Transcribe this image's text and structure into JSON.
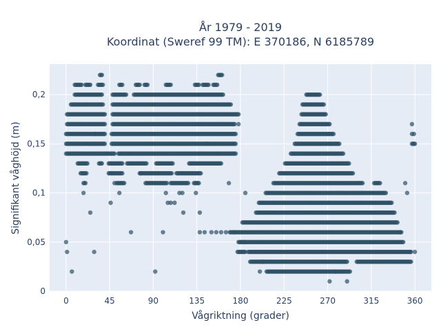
{
  "chart_data": {
    "type": "scatter",
    "title_line1": "År 1979 - 2019",
    "title_line2": "Koordinat (Sweref 99 TM): E 370186, N 6185789",
    "xlabel": "Vågriktning (grader)",
    "ylabel": "Signifikant våghöjd (m)",
    "xlim": [
      -17,
      377
    ],
    "ylim": [
      0,
      0.231
    ],
    "x_ticks": [
      0,
      45,
      90,
      135,
      180,
      225,
      270,
      315,
      360
    ],
    "x_tick_labels": [
      "0",
      "45",
      "90",
      "135",
      "180",
      "225",
      "270",
      "315",
      "360"
    ],
    "y_ticks": [
      0,
      0.05,
      0.1,
      0.15,
      0.2
    ],
    "y_tick_labels": [
      "0",
      "0,05",
      "0,1",
      "0,15",
      "0,2"
    ],
    "grid": true,
    "colors": {
      "marker": "#2f5166",
      "plot_background": "#e5ecf6",
      "grid": "#ffffff",
      "text": "#2a3f5f"
    },
    "series": [
      {
        "description_note": "dense bands of measured observations (wave height rounded to 0.01 m)",
        "bands": [
          {
            "y": 0.22,
            "x_ranges": [
              [
                35,
                37
              ],
              [
                157,
                161
              ]
            ]
          },
          {
            "y": 0.21,
            "x_ranges": [
              [
                9,
                16
              ],
              [
                20,
                25
              ],
              [
                33,
                38
              ],
              [
                55,
                58
              ],
              [
                72,
                76
              ],
              [
                81,
                84
              ],
              [
                103,
                108
              ],
              [
                133,
                137
              ],
              [
                141,
                147
              ],
              [
                152,
                156
              ]
            ]
          },
          {
            "y": 0.2,
            "x_ranges": [
              [
                9,
                37
              ],
              [
                48,
                62
              ],
              [
                70,
                96
              ],
              [
                97,
                162
              ],
              [
                248,
                262
              ]
            ]
          },
          {
            "y": 0.19,
            "x_ranges": [
              [
                5,
                38
              ],
              [
                48,
                170
              ],
              [
                244,
                266
              ]
            ]
          },
          {
            "y": 0.18,
            "x_ranges": [
              [
                1,
                40
              ],
              [
                48,
                178
              ],
              [
                243,
                268
              ]
            ]
          },
          {
            "y": 0.17,
            "x_ranges": [
              [
                1,
                40
              ],
              [
                48,
                174
              ],
              [
                241,
                272
              ]
            ]
          },
          {
            "y": 0.16,
            "x_ranges": [
              [
                0,
                40
              ],
              [
                47,
                175
              ],
              [
                239,
                276
              ]
            ]
          },
          {
            "y": 0.15,
            "x_ranges": [
              [
                0,
                40
              ],
              [
                47,
                175
              ],
              [
                236,
                282
              ],
              [
                357,
                360
              ]
            ]
          },
          {
            "y": 0.14,
            "x_ranges": [
              [
                0,
                50
              ],
              [
                54,
                175
              ],
              [
                232,
                286
              ]
            ]
          },
          {
            "y": 0.13,
            "x_ranges": [
              [
                12,
                22
              ],
              [
                34,
                37
              ],
              [
                44,
                58
              ],
              [
                63,
                83
              ],
              [
                93,
                110
              ],
              [
                127,
                160
              ],
              [
                226,
                292
              ]
            ]
          },
          {
            "y": 0.12,
            "x_ranges": [
              [
                15,
                20
              ],
              [
                44,
                58
              ],
              [
                76,
                109
              ],
              [
                114,
                139
              ],
              [
                220,
                296
              ]
            ]
          },
          {
            "y": 0.11,
            "x_ranges": [
              [
                18,
                20
              ],
              [
                52,
                60
              ],
              [
                82,
                104
              ],
              [
                108,
                126
              ],
              [
                132,
                137
              ],
              [
                214,
                306
              ],
              [
                318,
                324
              ]
            ]
          },
          {
            "y": 0.1,
            "x_ranges": [
              [
                206,
                330
              ]
            ]
          },
          {
            "y": 0.09,
            "x_ranges": [
              [
                199,
                336
              ]
            ]
          },
          {
            "y": 0.08,
            "x_ranges": [
              [
                196,
                339
              ]
            ]
          },
          {
            "y": 0.07,
            "x_ranges": [
              [
                182,
                342
              ]
            ]
          },
          {
            "y": 0.06,
            "x_ranges": [
              [
                169,
                346
              ]
            ]
          },
          {
            "y": 0.05,
            "x_ranges": [
              [
                178,
                348
              ]
            ]
          },
          {
            "y": 0.04,
            "x_ranges": [
              [
                177,
                185
              ],
              [
                188,
                356
              ]
            ]
          },
          {
            "y": 0.03,
            "x_ranges": [
              [
                190,
                290
              ],
              [
                300,
                356
              ]
            ]
          },
          {
            "y": 0.02,
            "x_ranges": [
              [
                207,
                293
              ]
            ]
          }
        ],
        "points": [
          [
            0,
            0.05
          ],
          [
            1,
            0.04
          ],
          [
            6,
            0.02
          ],
          [
            29,
            0.04
          ],
          [
            92,
            0.02
          ],
          [
            67,
            0.06
          ],
          [
            121,
            0.08
          ],
          [
            138,
            0.08
          ],
          [
            25,
            0.08
          ],
          [
            18,
            0.1
          ],
          [
            46,
            0.09
          ],
          [
            50,
            0.11
          ],
          [
            55,
            0.1
          ],
          [
            103,
            0.1
          ],
          [
            117,
            0.1
          ],
          [
            120,
            0.1
          ],
          [
            134,
            0.1
          ],
          [
            168,
            0.11
          ],
          [
            150,
            0.06
          ],
          [
            155,
            0.06
          ],
          [
            160,
            0.06
          ],
          [
            165,
            0.06
          ],
          [
            174,
            0.06
          ],
          [
            138,
            0.06
          ],
          [
            143,
            0.06
          ],
          [
            185,
            0.1
          ],
          [
            350,
            0.11
          ],
          [
            352,
            0.1
          ],
          [
            355,
            0.04
          ],
          [
            357,
            0.17
          ],
          [
            357,
            0.16
          ],
          [
            359,
            0.16
          ],
          [
            47,
            0.12
          ],
          [
            77,
            0.12
          ],
          [
            145,
            0.15
          ],
          [
            178,
            0.17
          ],
          [
            21,
            0.12
          ],
          [
            30,
            0.16
          ],
          [
            100,
            0.06
          ],
          [
            181,
            0.05
          ],
          [
            184,
            0.05
          ],
          [
            272,
            0.01
          ],
          [
            290,
            0.01
          ],
          [
            278,
            0.02
          ],
          [
            345,
            0.06
          ],
          [
            360,
            0.04
          ],
          [
            200,
            0.02
          ],
          [
            203,
            0.03
          ],
          [
            105,
            0.09
          ],
          [
            108,
            0.09
          ],
          [
            112,
            0.09
          ]
        ]
      }
    ]
  }
}
